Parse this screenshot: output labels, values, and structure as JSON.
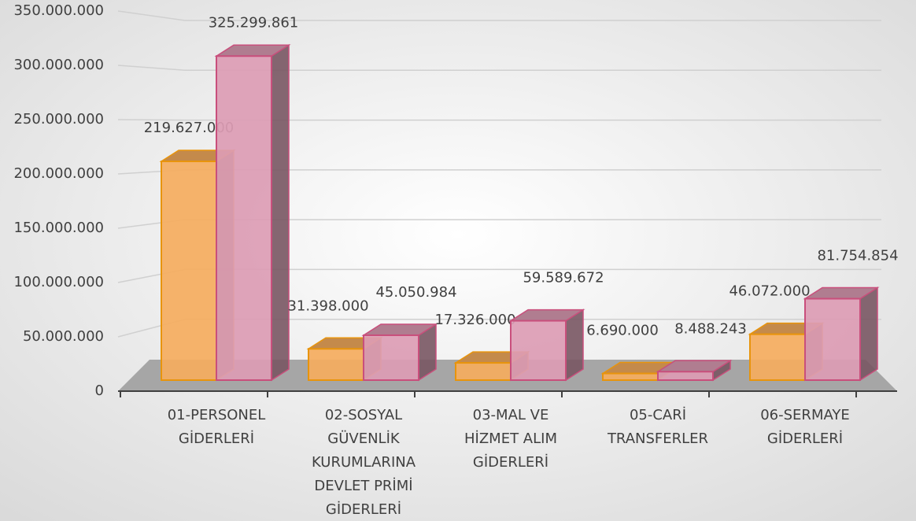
{
  "chart_data": {
    "type": "bar3d",
    "categories": [
      [
        "01-PERSONEL",
        "GİDERLERİ"
      ],
      [
        "02-SOSYAL",
        "GÜVENLİK",
        "KURUMLARINA",
        "DEVLET PRİMİ",
        "GİDERLERİ"
      ],
      [
        "03-MAL VE",
        "HİZMET ALIM",
        "GİDERLERİ"
      ],
      [
        "05-CARİ",
        "TRANSFERLER"
      ],
      [
        "06-SERMAYE",
        "GİDERLERİ"
      ]
    ],
    "series": [
      {
        "color": "#f5ad5e",
        "values": [
          219627000,
          31398000,
          17326000,
          6690000,
          46072000
        ],
        "value_labels": [
          "219.627.000",
          "31.398.000",
          "17.326.000",
          "6.690.000",
          "46.072.000"
        ]
      },
      {
        "color": "#dc9cb4",
        "values": [
          325299861,
          45050984,
          59589672,
          8488243,
          81754854
        ],
        "value_labels": [
          "325.299.861",
          "45.050.984",
          "59.589.672",
          "8.488.243",
          "81.754.854"
        ]
      }
    ],
    "ylim": [
      0,
      350000000
    ],
    "yticks": [
      0,
      {
        "value": 50000000,
        "label": "50.000.000"
      },
      {
        "value": 100000000,
        "label": "100.000.000"
      },
      {
        "value": 150000000,
        "label": "150.000.000"
      },
      {
        "value": 200000000,
        "label": "200.000.000"
      },
      {
        "value": 250000000,
        "label": "250.000.000"
      },
      {
        "value": 300000000,
        "label": "300.000.000"
      },
      {
        "value": 350000000,
        "label": "350.000.000"
      }
    ],
    "grid": true
  }
}
